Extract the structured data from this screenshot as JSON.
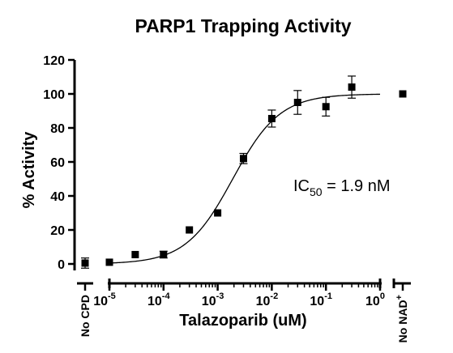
{
  "chart_data": {
    "type": "scatter",
    "title": "PARP1 Trapping Activity",
    "xlabel": "Talazoparib (uM)",
    "ylabel": "% Activity",
    "x_scale": "log",
    "xlim": [
      1e-05,
      1
    ],
    "ylim": [
      0,
      120
    ],
    "yticks": [
      "0",
      "20",
      "40",
      "60",
      "80",
      "100",
      "120"
    ],
    "xticks": [
      {
        "base": "10",
        "exp": "-5"
      },
      {
        "base": "10",
        "exp": "-4"
      },
      {
        "base": "10",
        "exp": "-3"
      },
      {
        "base": "10",
        "exp": "-2"
      },
      {
        "base": "10",
        "exp": "-1"
      },
      {
        "base": "10",
        "exp": "0"
      }
    ],
    "controls": {
      "left": {
        "label": "No CPD",
        "value": 0.5,
        "err": 3
      },
      "right": {
        "label": "No NAD",
        "superscript": "+",
        "value": 100,
        "err": 0
      }
    },
    "series": [
      {
        "points": [
          {
            "x": 1e-05,
            "y": 1.0,
            "err": 0
          },
          {
            "x": 3e-05,
            "y": 5.5,
            "err": 0
          },
          {
            "x": 0.0001,
            "y": 5.5,
            "err": 2
          },
          {
            "x": 0.0003,
            "y": 20.0,
            "err": 0
          },
          {
            "x": 0.001,
            "y": 30.0,
            "err": 0
          },
          {
            "x": 0.003,
            "y": 62.0,
            "err": 3
          },
          {
            "x": 0.01,
            "y": 85.5,
            "err": 5
          },
          {
            "x": 0.03,
            "y": 95.0,
            "err": 7
          },
          {
            "x": 0.1,
            "y": 92.5,
            "err": 5.5
          },
          {
            "x": 0.3,
            "y": 104.0,
            "err": 6.5
          }
        ]
      }
    ],
    "fit": {
      "model": "four-parameter logistic",
      "bottom": 0,
      "top": 100,
      "ic50": 0.0019,
      "hill": 1
    },
    "annotation": {
      "prefix": "IC",
      "subscript": "50",
      "suffix": " = 1.9 nM"
    },
    "grid": false
  }
}
